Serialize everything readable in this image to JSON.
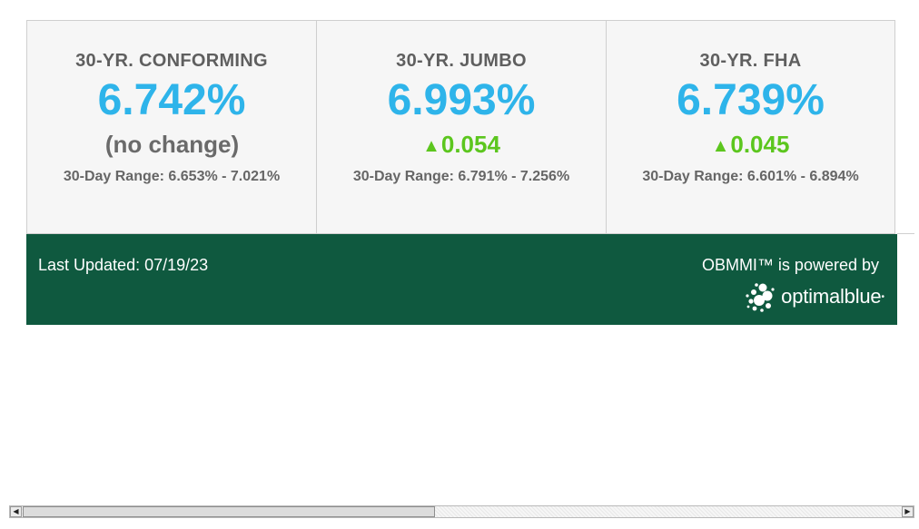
{
  "cards": [
    {
      "title": "30-YR. CONFORMING",
      "rate": "6.742%",
      "change": "(no change)",
      "change_arrow": "",
      "range": "30-Day Range: 6.653% - 7.021%"
    },
    {
      "title": "30-YR. JUMBO",
      "rate": "6.993%",
      "change": "0.054",
      "change_arrow": "▲",
      "range": "30-Day Range: 6.791% - 7.256%"
    },
    {
      "title": "30-YR. FHA",
      "rate": "6.739%",
      "change": "0.045",
      "change_arrow": "▲",
      "range": "30-Day Range: 6.601% - 6.894%"
    }
  ],
  "footer": {
    "last_updated": "Last Updated: 07/19/23",
    "powered_by": "OBMMI™ is powered by",
    "logo_text": "optimalblue",
    "logo_icon": "optimalblue-logo-icon"
  },
  "scrollbar": {
    "left_arrow": "◀",
    "right_arrow": "▶",
    "thumb_fraction": 0.47
  },
  "colors": {
    "rate": "#2eb4ea",
    "change_up": "#5cc61e",
    "footer_bg": "#0f593f",
    "card_bg": "#f6f6f6"
  }
}
